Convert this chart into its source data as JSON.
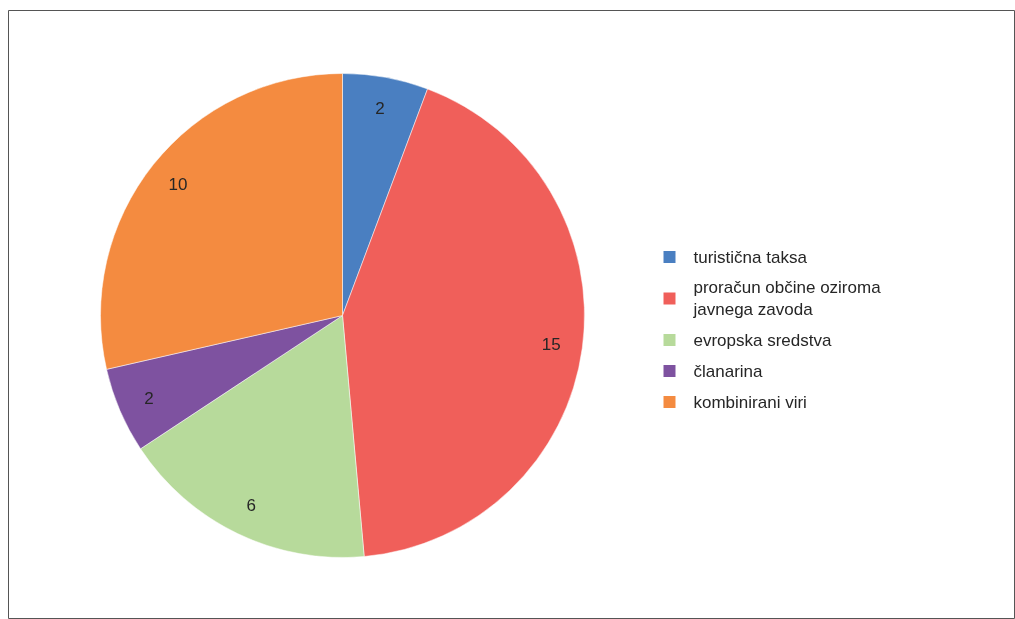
{
  "chart_data": {
    "type": "pie",
    "categories": [
      "turistična taksa",
      "proračun občine oziroma javnega zavoda",
      "evropska sredstva",
      "članarina",
      "kombinirani viri"
    ],
    "values": [
      2,
      15,
      6,
      2,
      10
    ],
    "colors": [
      "#4a7fc1",
      "#f05f5a",
      "#b7da9b",
      "#7e52a0",
      "#f48b40"
    ],
    "data_labels": true,
    "legend": "right"
  }
}
